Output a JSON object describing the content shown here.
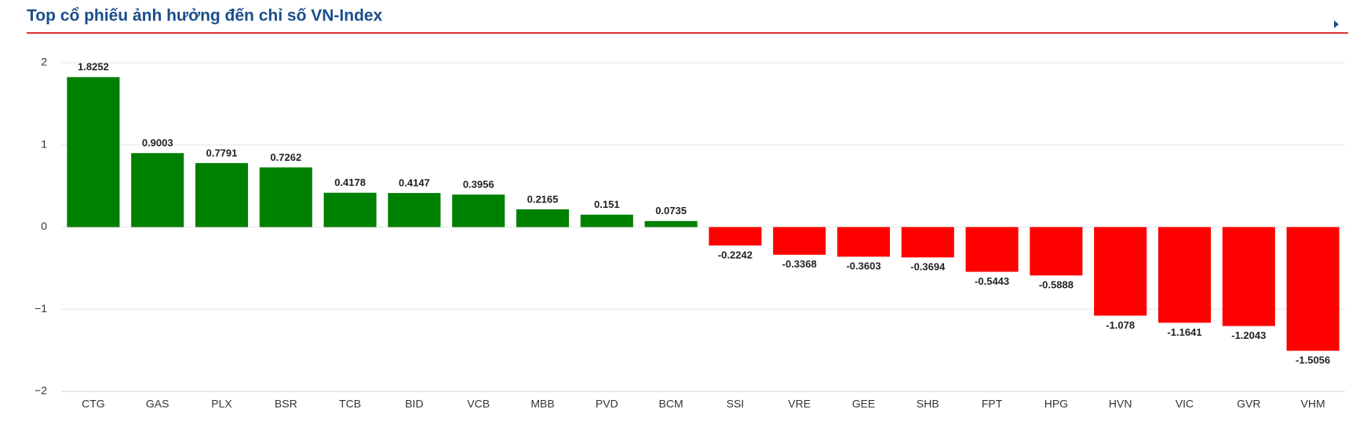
{
  "chart_data": {
    "type": "bar",
    "title": "Top cổ phiếu ảnh hưởng đến chỉ số VN-Index",
    "categories": [
      "CTG",
      "GAS",
      "PLX",
      "BSR",
      "TCB",
      "BID",
      "VCB",
      "MBB",
      "PVD",
      "BCM",
      "SSI",
      "VRE",
      "GEE",
      "SHB",
      "FPT",
      "HPG",
      "HVN",
      "VIC",
      "GVR",
      "VHM"
    ],
    "values": [
      1.8252,
      0.9003,
      0.7791,
      0.7262,
      0.4178,
      0.4147,
      0.3956,
      0.2165,
      0.151,
      0.0735,
      -0.2242,
      -0.3368,
      -0.3603,
      -0.3694,
      -0.5443,
      -0.5888,
      -1.078,
      -1.1641,
      -1.2043,
      -1.5056
    ],
    "positive_color": "#008000",
    "negative_color": "#ff0000",
    "ylim": [
      -2,
      2
    ],
    "yticks": [
      {
        "value": -2,
        "label": "−2"
      },
      {
        "value": -1,
        "label": "−1"
      },
      0,
      1,
      2
    ],
    "grid": true
  }
}
